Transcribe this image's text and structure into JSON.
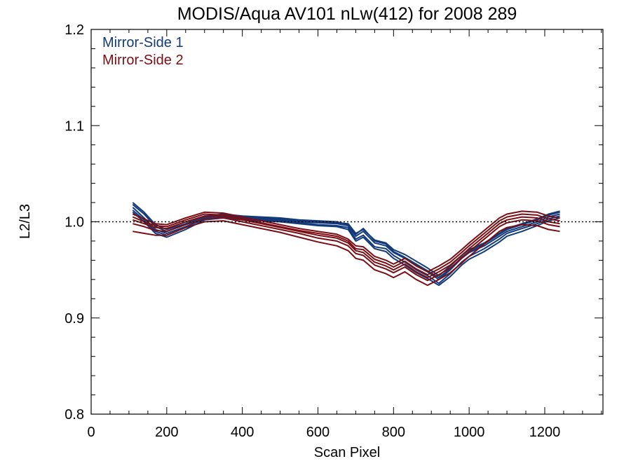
{
  "chart_data": {
    "type": "line",
    "title": "MODIS/Aqua AV101 nLw(412) for 2008 289",
    "xlabel": "Scan Pixel",
    "ylabel": "L2/L3",
    "xlim": [
      0,
      1354
    ],
    "ylim": [
      0.8,
      1.2
    ],
    "x_ticks": [
      "0",
      "200",
      "400",
      "600",
      "800",
      "1000",
      "1200"
    ],
    "y_ticks": [
      "0.8",
      "0.9",
      "1.0",
      "1.1",
      "1.2"
    ],
    "reference_line": 1.0,
    "grid": false,
    "legend_position": "top-left",
    "x": [
      110,
      140,
      170,
      200,
      250,
      300,
      350,
      400,
      450,
      500,
      550,
      600,
      650,
      680,
      700,
      720,
      750,
      780,
      800,
      830,
      860,
      890,
      920,
      950,
      980,
      1000,
      1040,
      1080,
      1100,
      1140,
      1180,
      1210,
      1240
    ],
    "series": [
      {
        "name": "Mirror-Side 1",
        "color": "#133A7A",
        "curves": [
          [
            1.018,
            1.008,
            0.995,
            0.99,
            0.997,
            1.005,
            1.006,
            1.004,
            1.003,
            1.002,
            1.0,
            0.999,
            0.998,
            0.996,
            0.985,
            0.99,
            0.978,
            0.975,
            0.968,
            0.962,
            0.955,
            0.948,
            0.94,
            0.95,
            0.962,
            0.968,
            0.975,
            0.985,
            0.99,
            0.995,
            1.0,
            1.005,
            1.008
          ],
          [
            1.015,
            1.004,
            0.992,
            0.988,
            0.995,
            1.003,
            1.005,
            1.003,
            1.002,
            1.001,
            0.999,
            0.997,
            0.996,
            0.994,
            0.982,
            0.986,
            0.974,
            0.972,
            0.965,
            0.958,
            0.95,
            0.944,
            0.936,
            0.946,
            0.958,
            0.964,
            0.972,
            0.982,
            0.988,
            0.993,
            0.998,
            1.003,
            1.006
          ],
          [
            1.012,
            1.002,
            0.99,
            0.986,
            0.994,
            1.004,
            1.007,
            1.005,
            1.004,
            1.003,
            1.001,
            1.0,
            0.999,
            0.998,
            0.988,
            0.992,
            0.981,
            0.978,
            0.971,
            0.966,
            0.959,
            0.952,
            0.944,
            0.954,
            0.965,
            0.971,
            0.978,
            0.988,
            0.993,
            0.998,
            1.003,
            1.008,
            1.011
          ],
          [
            1.02,
            1.01,
            0.997,
            0.992,
            0.998,
            1.006,
            1.008,
            1.006,
            1.005,
            1.004,
            1.002,
            1.001,
            1.0,
            0.997,
            0.987,
            0.993,
            0.98,
            0.977,
            0.969,
            0.963,
            0.956,
            0.949,
            0.942,
            0.951,
            0.963,
            0.969,
            0.977,
            0.987,
            0.992,
            0.997,
            1.002,
            1.007,
            1.01
          ],
          [
            1.01,
            1.0,
            0.988,
            0.984,
            0.992,
            1.002,
            1.004,
            1.002,
            1.001,
            1.0,
            0.998,
            0.996,
            0.995,
            0.992,
            0.98,
            0.984,
            0.972,
            0.969,
            0.962,
            0.955,
            0.947,
            0.941,
            0.934,
            0.943,
            0.955,
            0.961,
            0.969,
            0.979,
            0.985,
            0.99,
            0.996,
            1.001,
            1.004
          ]
        ]
      },
      {
        "name": "Mirror-Side 2",
        "color": "#7A0E14",
        "curves": [
          [
            1.002,
            0.998,
            0.994,
            0.993,
            1.0,
            1.006,
            1.006,
            1.002,
            0.998,
            0.994,
            0.99,
            0.986,
            0.983,
            0.978,
            0.97,
            0.968,
            0.958,
            0.954,
            0.95,
            0.956,
            0.948,
            0.942,
            0.948,
            0.955,
            0.965,
            0.972,
            0.985,
            0.998,
            1.002,
            1.005,
            1.004,
            1.0,
            0.998
          ],
          [
            1.005,
            1.0,
            0.996,
            0.995,
            1.002,
            1.008,
            1.007,
            1.003,
            0.999,
            0.995,
            0.991,
            0.988,
            0.985,
            0.98,
            0.972,
            0.971,
            0.961,
            0.957,
            0.953,
            0.959,
            0.951,
            0.945,
            0.951,
            0.958,
            0.968,
            0.975,
            0.988,
            1.001,
            1.005,
            1.008,
            1.007,
            1.003,
            1.001
          ],
          [
            0.998,
            0.995,
            0.991,
            0.99,
            0.997,
            1.003,
            1.004,
            1.0,
            0.996,
            0.992,
            0.988,
            0.983,
            0.98,
            0.975,
            0.967,
            0.965,
            0.955,
            0.951,
            0.947,
            0.953,
            0.945,
            0.939,
            0.945,
            0.952,
            0.962,
            0.969,
            0.982,
            0.995,
            0.999,
            1.002,
            1.001,
            0.997,
            0.995
          ],
          [
            1.008,
            1.003,
            0.998,
            0.997,
            1.004,
            1.01,
            1.009,
            1.005,
            1.001,
            0.997,
            0.993,
            0.99,
            0.987,
            0.982,
            0.975,
            0.974,
            0.964,
            0.96,
            0.956,
            0.962,
            0.954,
            0.948,
            0.954,
            0.961,
            0.971,
            0.978,
            0.991,
            1.004,
            1.008,
            1.011,
            1.01,
            1.006,
            1.004
          ],
          [
            0.99,
            0.988,
            0.986,
            0.986,
            0.994,
            1.0,
            1.001,
            0.997,
            0.993,
            0.989,
            0.984,
            0.979,
            0.975,
            0.97,
            0.962,
            0.96,
            0.95,
            0.946,
            0.942,
            0.948,
            0.94,
            0.934,
            0.94,
            0.947,
            0.957,
            0.964,
            0.977,
            0.99,
            0.994,
            0.997,
            0.996,
            0.992,
            0.99
          ]
        ]
      }
    ]
  }
}
